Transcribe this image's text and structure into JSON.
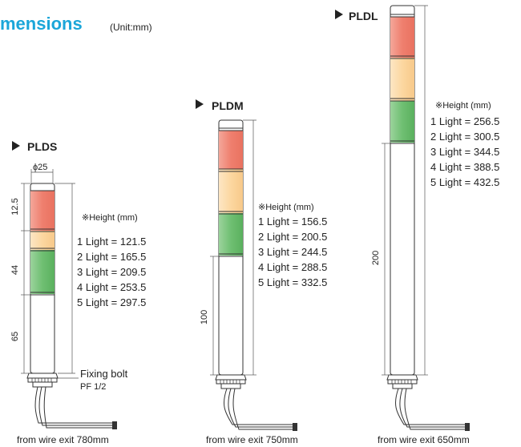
{
  "header": {
    "title": "mensions",
    "unit": "(Unit:mm)"
  },
  "pldl": {
    "label": "PLDL",
    "height_title": "※Height (mm)",
    "heights": [
      "1 Light = 256.5",
      "2 Light = 300.5",
      "3 Light = 344.5",
      "4 Light = 388.5",
      "5 Light = 432.5"
    ],
    "dim_main": "200",
    "caption": "from wire exit 650mm"
  },
  "pldm": {
    "label": "PLDM",
    "height_title": "※Height (mm)",
    "heights": [
      "1 Light = 156.5",
      "2 Light = 200.5",
      "3 Light = 244.5",
      "4 Light = 288.5",
      "5 Light = 332.5"
    ],
    "dim_main": "100",
    "caption": "from wire exit 750mm"
  },
  "plds": {
    "label": "PLDS",
    "diameter": "ϕ25",
    "height_title": "※Height (mm)",
    "heights": [
      "1 Light = 121.5",
      "2 Light = 165.5",
      "3 Light = 209.5",
      "4 Light = 253.5",
      "5 Light = 297.5"
    ],
    "dim_top": "12.5",
    "dim_mid": "44",
    "dim_bottom": "65",
    "fixing_bolt": "Fixing bolt",
    "fixing_bolt_size": "PF 1/2",
    "caption": "from wire exit 780mm"
  },
  "colors": {
    "red": "#ef7f6e",
    "amber": "#fcd7a0",
    "green": "#6fbf72",
    "accent": "#1ba6d9"
  },
  "icons": {
    "arrow": "play-triangle-icon"
  }
}
